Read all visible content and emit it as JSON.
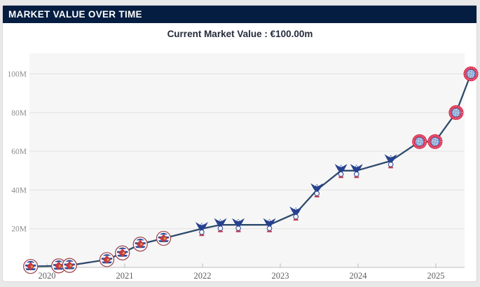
{
  "header": {
    "title": "MARKET VALUE OVER TIME"
  },
  "subheader": {
    "current_value_label": "Current Market Value : €100.00m"
  },
  "colors": {
    "frame_bg": "#e9e9e9",
    "card_bg": "#ffffff",
    "card_border": "#d9d9d9",
    "header_bg": "#041d40",
    "header_fg": "#ffffff",
    "subheader_fg": "#262b3c",
    "plot_bg": "#f6f6f6",
    "gridline": "#e2e2e2",
    "axis_line": "#c9c9c9",
    "line_color": "#2d4a6d",
    "y_tick_color": "#8c8c8c",
    "x_tick_color": "#5d5d5d"
  },
  "chart_data": {
    "type": "line",
    "title": "Market value over time",
    "xlabel": "",
    "ylabel": "",
    "grid": true,
    "legend": "none",
    "y_unit": "M (€ million)",
    "ylim": [
      0,
      111
    ],
    "y_ticks": [
      {
        "value_m": 20,
        "label": "20M"
      },
      {
        "value_m": 40,
        "label": "40M"
      },
      {
        "value_m": 60,
        "label": "60M"
      },
      {
        "value_m": 80,
        "label": "80M"
      },
      {
        "value_m": 100,
        "label": "100M"
      }
    ],
    "x_ticks": [
      {
        "year": 2020,
        "label": "2020"
      },
      {
        "year": 2021,
        "label": "2021"
      },
      {
        "year": 2022,
        "label": "2022"
      },
      {
        "year": 2023,
        "label": "2023"
      },
      {
        "year": 2024,
        "label": "2024"
      },
      {
        "year": 2025,
        "label": "2025"
      }
    ],
    "xlim_years": [
      2019.55,
      2025.6
    ],
    "marker_icons": {
      "reading": "reading-crest-icon",
      "crystal-palace": "crystal-palace-crest-icon",
      "bayern-munich": "bayern-munich-crest-icon"
    },
    "points": [
      {
        "year": 2019.79,
        "value_m": 0.5,
        "club": "reading"
      },
      {
        "year": 2020.15,
        "value_m": 0.8,
        "club": "reading"
      },
      {
        "year": 2020.29,
        "value_m": 1.0,
        "club": "reading"
      },
      {
        "year": 2020.77,
        "value_m": 4.0,
        "club": "reading"
      },
      {
        "year": 2020.97,
        "value_m": 7.5,
        "club": "reading"
      },
      {
        "year": 2021.2,
        "value_m": 12.0,
        "club": "reading"
      },
      {
        "year": 2021.5,
        "value_m": 15.0,
        "club": "reading"
      },
      {
        "year": 2021.99,
        "value_m": 20.0,
        "club": "crystal-palace"
      },
      {
        "year": 2022.23,
        "value_m": 22.0,
        "club": "crystal-palace"
      },
      {
        "year": 2022.46,
        "value_m": 22.0,
        "club": "crystal-palace"
      },
      {
        "year": 2022.86,
        "value_m": 22.0,
        "club": "crystal-palace"
      },
      {
        "year": 2023.2,
        "value_m": 28.0,
        "club": "crystal-palace"
      },
      {
        "year": 2023.47,
        "value_m": 40.0,
        "club": "crystal-palace"
      },
      {
        "year": 2023.78,
        "value_m": 50.0,
        "club": "crystal-palace"
      },
      {
        "year": 2023.98,
        "value_m": 50.0,
        "club": "crystal-palace"
      },
      {
        "year": 2024.42,
        "value_m": 55.0,
        "club": "crystal-palace"
      },
      {
        "year": 2024.79,
        "value_m": 65.0,
        "club": "bayern-munich"
      },
      {
        "year": 2024.99,
        "value_m": 65.0,
        "club": "bayern-munich"
      },
      {
        "year": 2025.26,
        "value_m": 80.0,
        "club": "bayern-munich"
      },
      {
        "year": 2025.45,
        "value_m": 100.0,
        "club": "bayern-munich"
      }
    ]
  }
}
